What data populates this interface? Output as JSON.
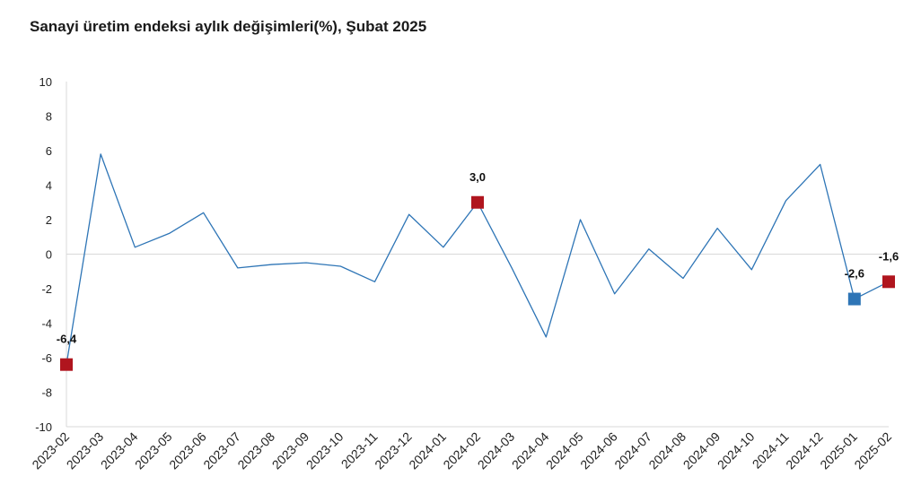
{
  "title": "Sanayi üretim endeksi aylık değişimleri(%), Şubat 2025",
  "chart_data": {
    "type": "line",
    "title": "Sanayi üretim endeksi aylık değişimleri(%), Şubat 2025",
    "xlabel": "",
    "ylabel": "",
    "ylim": [
      -10,
      10
    ],
    "yticks": [
      10,
      8,
      6,
      4,
      2,
      0,
      -2,
      -4,
      -6,
      -8,
      -10
    ],
    "ytick_labels": [
      "10",
      "8",
      "6",
      "4",
      "2",
      "0",
      "-2",
      "-4",
      "-6",
      "-8",
      "-10"
    ],
    "grid": false,
    "categories": [
      "2023-02",
      "2023-03",
      "2023-04",
      "2023-05",
      "2023-06",
      "2023-07",
      "2023-08",
      "2023-09",
      "2023-10",
      "2023-11",
      "2023-12",
      "2024-01",
      "2024-02",
      "2024-03",
      "2024-04",
      "2024-05",
      "2024-06",
      "2024-07",
      "2024-08",
      "2024-09",
      "2024-10",
      "2024-11",
      "2024-12",
      "2025-01",
      "2025-02"
    ],
    "series": [
      {
        "values": [
          -6.4,
          5.8,
          0.4,
          1.2,
          2.4,
          -0.8,
          -0.6,
          -0.5,
          -0.7,
          -1.6,
          2.3,
          0.4,
          3.0,
          -0.8,
          -4.8,
          2.0,
          -2.3,
          0.3,
          -1.4,
          1.5,
          -0.9,
          3.1,
          5.2,
          -2.6,
          -1.6
        ],
        "color": "#2e75b6"
      }
    ],
    "highlighted_points": [
      {
        "category": "2023-02",
        "value": -6.4,
        "label": "-6,4",
        "color": "#b0151e"
      },
      {
        "category": "2024-02",
        "value": 3.0,
        "label": "3,0",
        "color": "#b0151e"
      },
      {
        "category": "2025-01",
        "value": -2.6,
        "label": "-2,6",
        "color": "#2e75b6"
      },
      {
        "category": "2025-02",
        "value": -1.6,
        "label": "-1,6",
        "color": "#b0151e"
      }
    ],
    "colors": {
      "line": "#2e75b6",
      "highlight_red": "#b0151e",
      "highlight_blue": "#2e75b6",
      "axis": "#d9d9d9"
    }
  }
}
